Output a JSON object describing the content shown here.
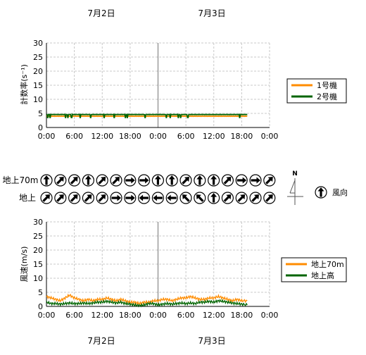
{
  "dates": [
    "7月2日",
    "7月3日"
  ],
  "x_ticks": [
    "0:00",
    "6:00",
    "12:00",
    "18:00",
    "0:00",
    "6:00",
    "12:00",
    "18:00",
    "0:00"
  ],
  "y_ticks_count": [
    "0",
    "5",
    "10",
    "15",
    "20",
    "25",
    "30"
  ],
  "y_ticks_wind": [
    "0",
    "5",
    "10",
    "15",
    "20",
    "25",
    "30"
  ],
  "wind_direction": {
    "row_labels": [
      "地上70m",
      "地上"
    ],
    "legend_label": "風向",
    "north_label": "N",
    "rows": [
      [
        "N",
        "NE",
        "NE",
        "N",
        "NE",
        "NE",
        "E",
        "E",
        "N",
        "N",
        "NE",
        "N",
        "N",
        "NE",
        "E",
        "E",
        "NE"
      ],
      [
        "NE",
        "NE",
        "NE",
        "NE",
        "NE",
        "E",
        "E",
        "W",
        "W",
        "W",
        "NW",
        "NW",
        "N",
        "NE",
        "NE",
        "NE",
        "NE"
      ]
    ]
  },
  "chart_data": [
    {
      "type": "line",
      "ylabel": "計数率(s⁻¹)",
      "ylim": [
        0,
        30
      ],
      "x_range_hours": [
        0,
        48
      ],
      "grid": true,
      "legend_placement": "right",
      "series": [
        {
          "name": "1号機",
          "color": "#ff8c00",
          "base": 4.0,
          "noise": 0.15
        },
        {
          "name": "2号機",
          "color": "#006400",
          "base": 4.6,
          "noise": 0.15,
          "dips": [
            0.3,
            0.8,
            4.1,
            4.6,
            5.4,
            7.3,
            9.5,
            12.4,
            14.6,
            17.0,
            17.4,
            21.2,
            25.8,
            26.6,
            28.4,
            28.9,
            30.4,
            41.6
          ]
        }
      ],
      "x_end_hours": 43.2
    },
    {
      "type": "line",
      "ylabel": "風速(m/s)",
      "ylim": [
        0,
        30
      ],
      "x_range_hours": [
        0,
        48
      ],
      "grid": true,
      "legend_placement": "right",
      "series": [
        {
          "name": "地上70m",
          "color": "#ff8c00",
          "points": [
            [
              0,
              3.5
            ],
            [
              1,
              3.0
            ],
            [
              2,
              2.5
            ],
            [
              3,
              2.0
            ],
            [
              4,
              3.0
            ],
            [
              5,
              4.0
            ],
            [
              6,
              3.0
            ],
            [
              7,
              2.5
            ],
            [
              8,
              2.0
            ],
            [
              9,
              2.5
            ],
            [
              10,
              2.0
            ],
            [
              11,
              2.5
            ],
            [
              12,
              2.5
            ],
            [
              13,
              3.0
            ],
            [
              14,
              2.5
            ],
            [
              15,
              2.0
            ],
            [
              16,
              2.5
            ],
            [
              17,
              2.0
            ],
            [
              18,
              1.5
            ],
            [
              19,
              1.5
            ],
            [
              20,
              1.0
            ],
            [
              21,
              1.5
            ],
            [
              22,
              1.5
            ],
            [
              23,
              2.0
            ],
            [
              24,
              2.0
            ],
            [
              25,
              2.5
            ],
            [
              26,
              2.5
            ],
            [
              27,
              2.0
            ],
            [
              28,
              2.5
            ],
            [
              29,
              3.0
            ],
            [
              30,
              3.0
            ],
            [
              31,
              3.5
            ],
            [
              32,
              3.0
            ],
            [
              33,
              2.5
            ],
            [
              34,
              2.5
            ],
            [
              35,
              3.0
            ],
            [
              36,
              3.0
            ],
            [
              37,
              3.5
            ],
            [
              38,
              3.0
            ],
            [
              39,
              2.5
            ],
            [
              40,
              2.0
            ],
            [
              41,
              2.5
            ],
            [
              42,
              2.0
            ],
            [
              43.2,
              2.0
            ]
          ]
        },
        {
          "name": "地上高",
          "color": "#006400",
          "points": [
            [
              0,
              1.5
            ],
            [
              1,
              1.0
            ],
            [
              2,
              1.0
            ],
            [
              3,
              0.8
            ],
            [
              4,
              1.0
            ],
            [
              5,
              1.2
            ],
            [
              6,
              1.0
            ],
            [
              7,
              1.0
            ],
            [
              8,
              1.2
            ],
            [
              9,
              1.0
            ],
            [
              10,
              1.2
            ],
            [
              11,
              1.5
            ],
            [
              12,
              1.5
            ],
            [
              13,
              1.8
            ],
            [
              14,
              1.5
            ],
            [
              15,
              1.2
            ],
            [
              16,
              1.5
            ],
            [
              17,
              1.0
            ],
            [
              18,
              0.8
            ],
            [
              19,
              0.5
            ],
            [
              20,
              0.3
            ],
            [
              21,
              0.5
            ],
            [
              22,
              1.0
            ],
            [
              23,
              1.0
            ],
            [
              24,
              0.5
            ],
            [
              25,
              0.8
            ],
            [
              26,
              1.0
            ],
            [
              27,
              0.8
            ],
            [
              28,
              1.0
            ],
            [
              29,
              1.2
            ],
            [
              30,
              1.0
            ],
            [
              31,
              1.2
            ],
            [
              32,
              1.0
            ],
            [
              33,
              1.5
            ],
            [
              34,
              1.5
            ],
            [
              35,
              1.8
            ],
            [
              36,
              1.5
            ],
            [
              37,
              2.0
            ],
            [
              38,
              1.8
            ],
            [
              39,
              1.5
            ],
            [
              40,
              1.2
            ],
            [
              41,
              1.0
            ],
            [
              42,
              0.8
            ],
            [
              43.2,
              0.5
            ]
          ]
        }
      ]
    }
  ]
}
